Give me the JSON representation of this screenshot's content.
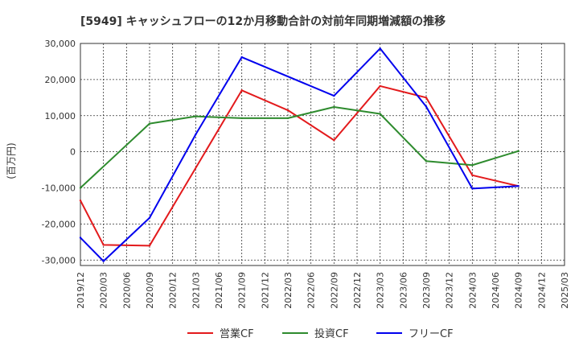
{
  "chart_data": {
    "type": "line",
    "title": "[5949]  キャッシュフローの12か月移動合計の対前年同期増減額の推移",
    "ylabel": "(百万円)",
    "xlabel": "",
    "ylim": [
      -31500,
      30000
    ],
    "yticks": [
      30000,
      20000,
      10000,
      0,
      -10000,
      -20000,
      -30000
    ],
    "ytick_labels": [
      "30,000",
      "20,000",
      "10,000",
      "0",
      "-10,000",
      "-20,000",
      "-30,000"
    ],
    "categories": [
      "2019/12",
      "2020/03",
      "2020/06",
      "2020/09",
      "2020/12",
      "2021/03",
      "2021/06",
      "2021/09",
      "2021/12",
      "2022/03",
      "2022/06",
      "2022/09",
      "2022/12",
      "2023/03",
      "2023/06",
      "2023/09",
      "2023/12",
      "2024/03",
      "2024/06",
      "2024/09",
      "2024/12",
      "2025/03"
    ],
    "grid": true,
    "legend_position": "bottom",
    "series": [
      {
        "name": "営業CF",
        "color": "#e31a1c",
        "points": [
          {
            "x": "2019/12",
            "y": -13500
          },
          {
            "x": "2020/03",
            "y": -25800
          },
          {
            "x": "2020/09",
            "y": -26000
          },
          {
            "x": "2021/09",
            "y": 17000
          },
          {
            "x": "2022/03",
            "y": 11500
          },
          {
            "x": "2022/09",
            "y": 3200
          },
          {
            "x": "2023/03",
            "y": 18200
          },
          {
            "x": "2023/09",
            "y": 15000
          },
          {
            "x": "2024/03",
            "y": -6500
          },
          {
            "x": "2024/09",
            "y": -9500
          }
        ]
      },
      {
        "name": "投資CF",
        "color": "#2e8b2e",
        "points": [
          {
            "x": "2019/12",
            "y": -10000
          },
          {
            "x": "2020/09",
            "y": 7800
          },
          {
            "x": "2021/03",
            "y": 9800
          },
          {
            "x": "2021/09",
            "y": 9300
          },
          {
            "x": "2022/03",
            "y": 9300
          },
          {
            "x": "2022/09",
            "y": 12400
          },
          {
            "x": "2023/03",
            "y": 10500
          },
          {
            "x": "2023/09",
            "y": -2600
          },
          {
            "x": "2024/03",
            "y": -3700
          },
          {
            "x": "2024/09",
            "y": 200
          }
        ]
      },
      {
        "name": "フリーCF",
        "color": "#0000ee",
        "points": [
          {
            "x": "2019/12",
            "y": -23800
          },
          {
            "x": "2020/03",
            "y": -30300
          },
          {
            "x": "2020/09",
            "y": -18300
          },
          {
            "x": "2021/03",
            "y": 4800
          },
          {
            "x": "2021/09",
            "y": 26200
          },
          {
            "x": "2022/09",
            "y": 15500
          },
          {
            "x": "2023/03",
            "y": 28600
          },
          {
            "x": "2023/09",
            "y": 12500
          },
          {
            "x": "2024/03",
            "y": -10200
          },
          {
            "x": "2024/09",
            "y": -9500
          }
        ]
      }
    ]
  }
}
